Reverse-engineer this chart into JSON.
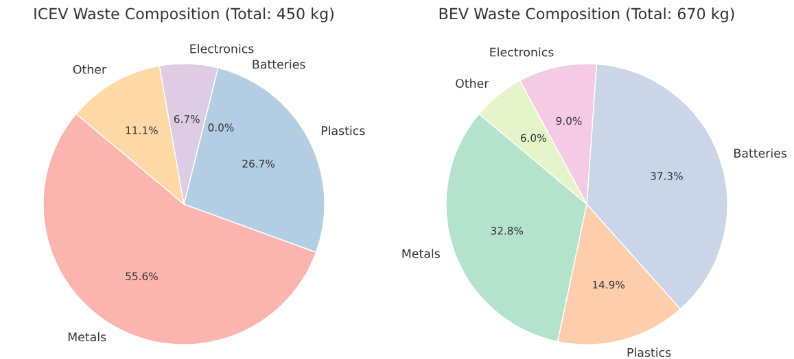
{
  "chart_data": [
    {
      "type": "pie",
      "title": "ICEV Waste Composition (Total: 450 kg)",
      "categories": [
        "Metals",
        "Plastics",
        "Batteries",
        "Electronics",
        "Other"
      ],
      "values": [
        55.6,
        26.7,
        0.0,
        6.7,
        11.1
      ],
      "value_labels": [
        "55.6%",
        "26.7%",
        "0.0%",
        "6.7%",
        "11.1%"
      ],
      "colors": [
        "#fbb4ae",
        "#b3cde3",
        "#ccebc5",
        "#decbe4",
        "#fed9a6"
      ]
    },
    {
      "type": "pie",
      "title": "BEV Waste Composition (Total: 670 kg)",
      "categories": [
        "Metals",
        "Plastics",
        "Batteries",
        "Electronics",
        "Other"
      ],
      "values": [
        32.8,
        14.9,
        37.3,
        9.0,
        6.0
      ],
      "value_labels": [
        "32.8%",
        "14.9%",
        "37.3%",
        "9.0%",
        "6.0%"
      ],
      "colors": [
        "#b3e2cd",
        "#fdcdac",
        "#cbd5e8",
        "#f4cae4",
        "#e6f5c9"
      ]
    }
  ]
}
